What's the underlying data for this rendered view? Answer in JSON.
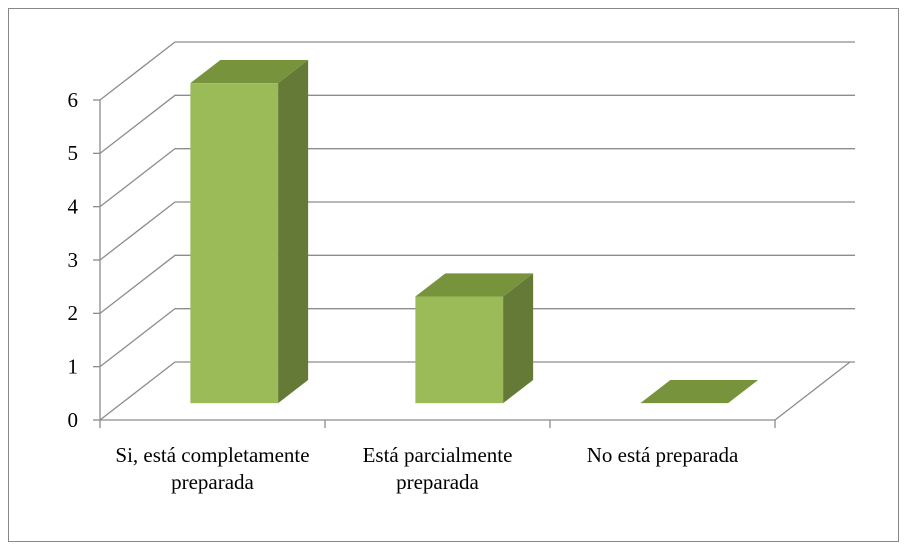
{
  "chart_data": {
    "type": "bar3d",
    "categories": [
      "Si, está completamente preparada",
      "Está parcialmente preparada",
      "No está preparada"
    ],
    "values": [
      6,
      2,
      0
    ],
    "color": "#9bbb59",
    "side_color": "#647a36",
    "top_color": "#77933c",
    "ylim": [
      0,
      6
    ],
    "yticks": [
      0,
      1,
      2,
      3,
      4,
      5,
      6
    ],
    "grid": true
  }
}
